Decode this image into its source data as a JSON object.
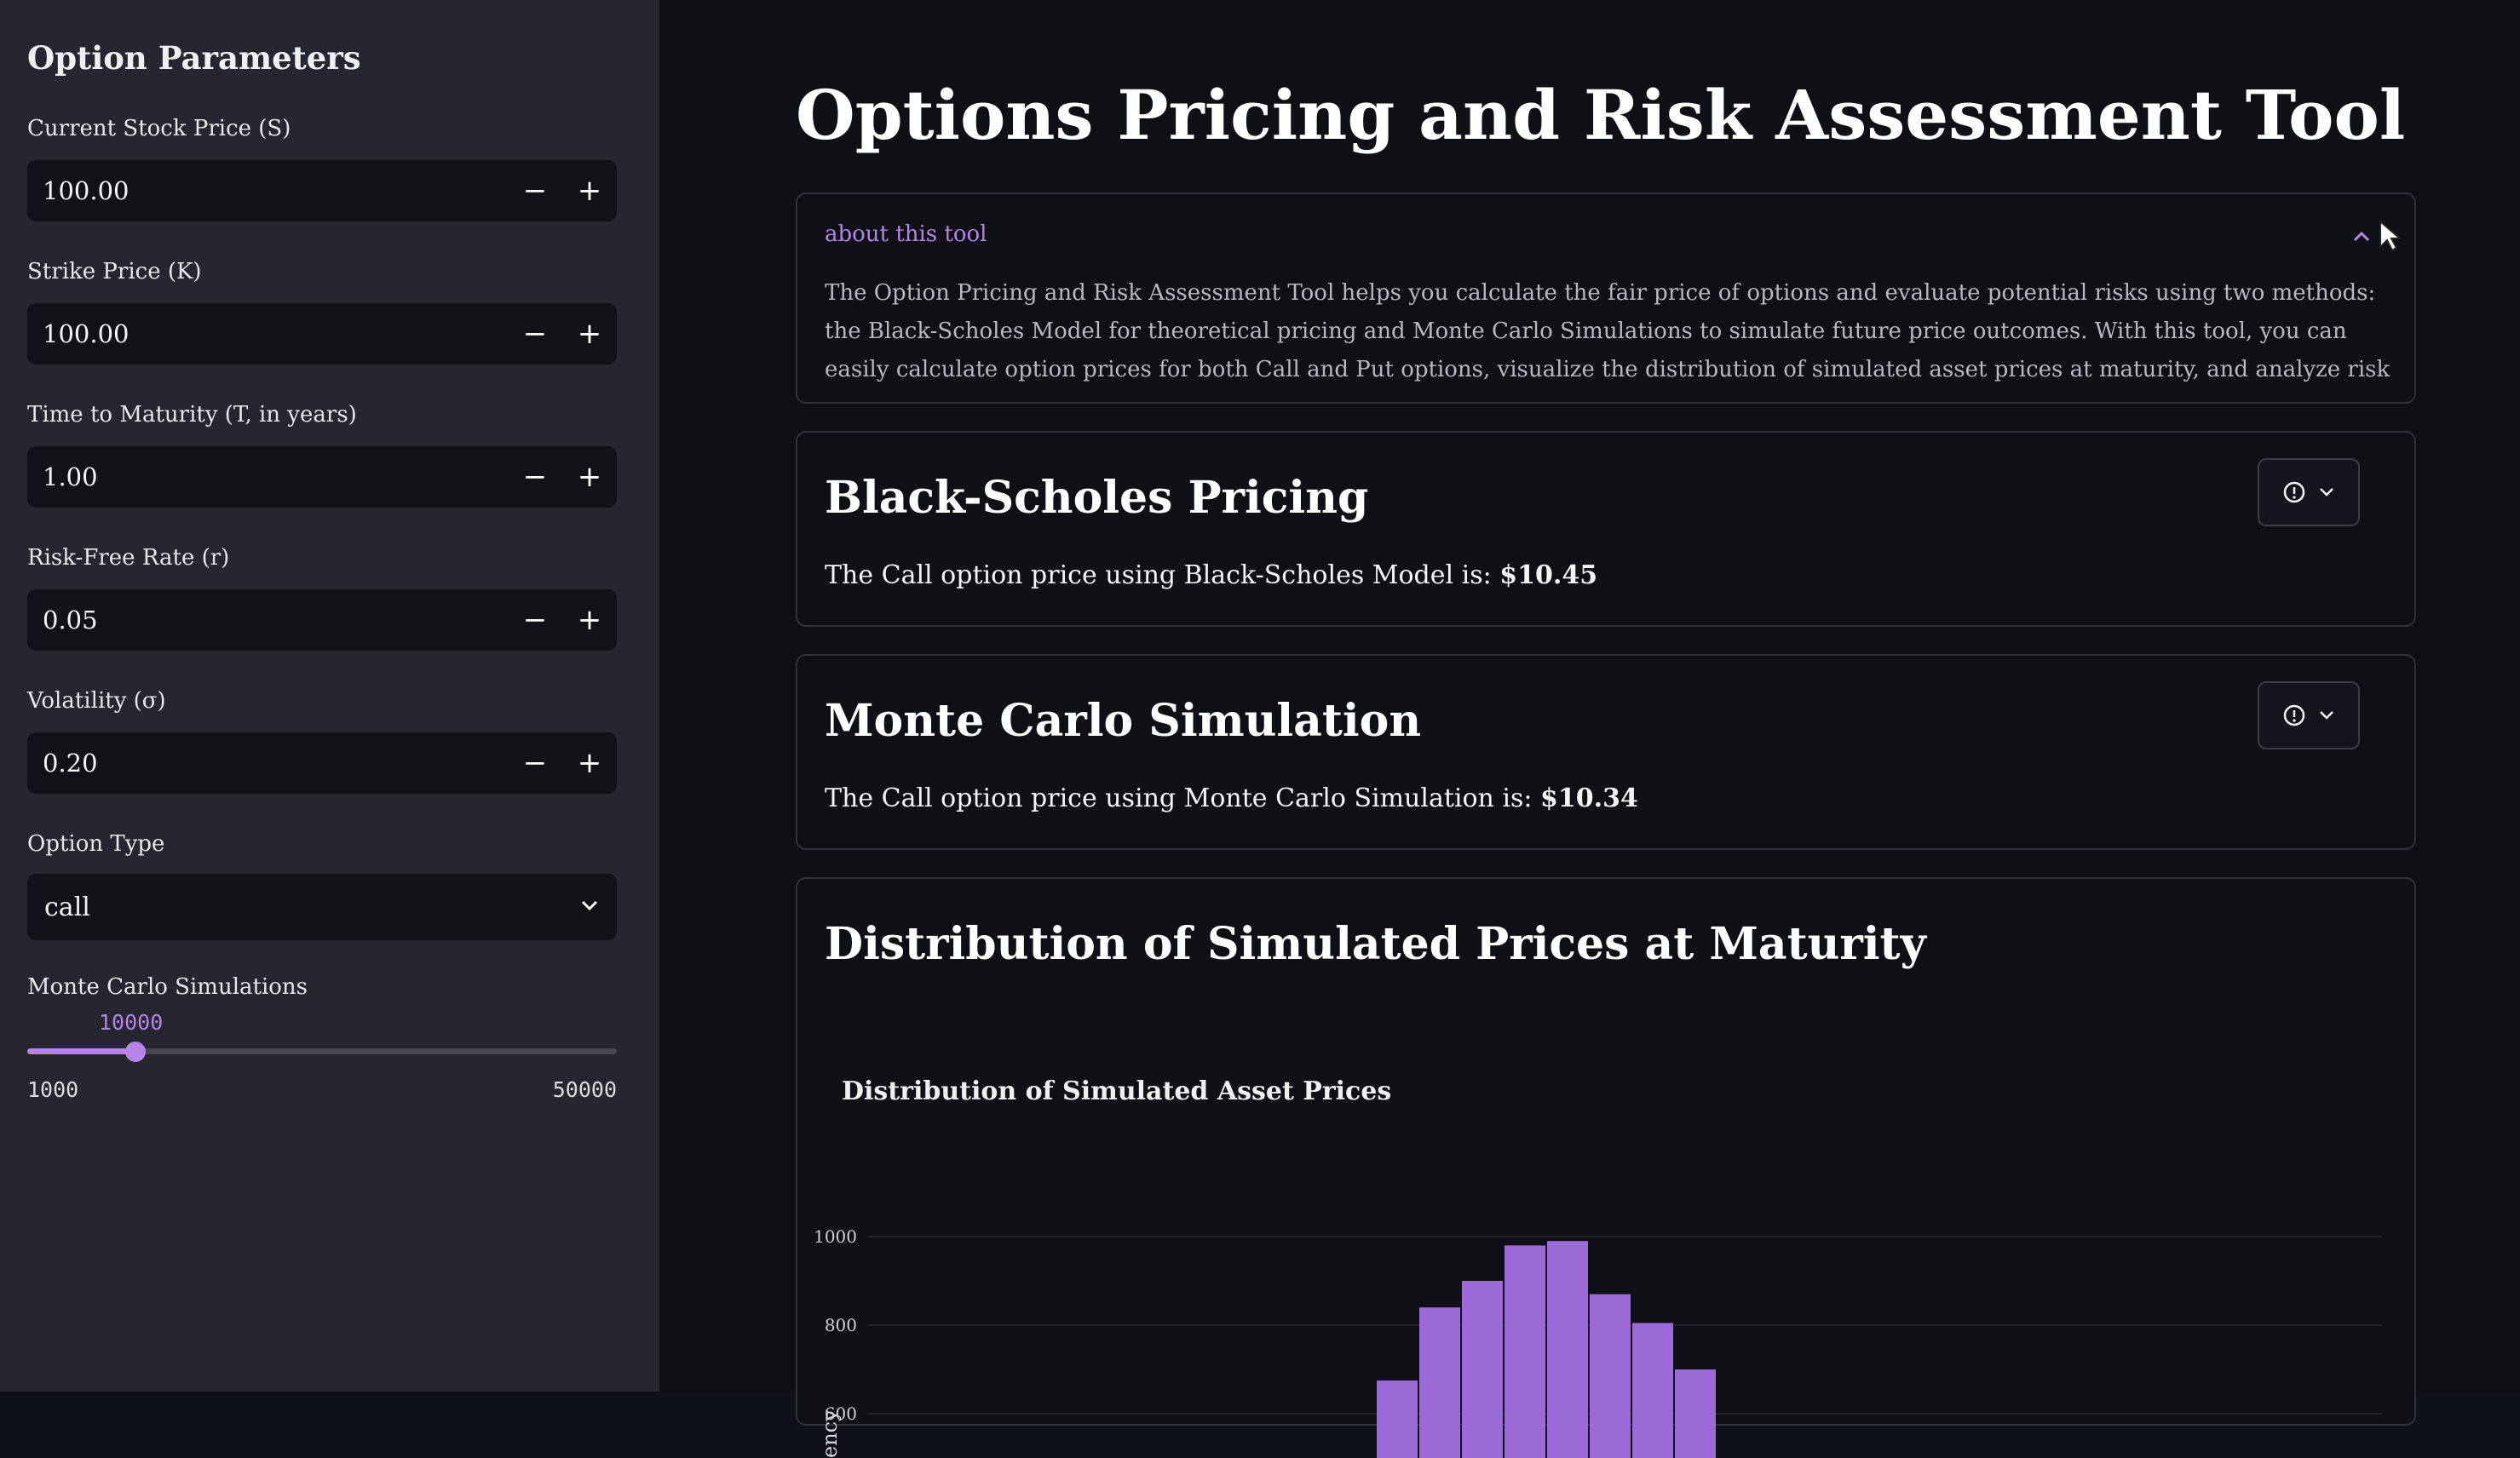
{
  "sidebar": {
    "title": "Option Parameters",
    "inputs": [
      {
        "label": "Current Stock Price (S)",
        "value": "100.00"
      },
      {
        "label": "Strike Price (K)",
        "value": "100.00"
      },
      {
        "label": "Time to Maturity (T, in years)",
        "value": "1.00"
      },
      {
        "label": "Risk-Free Rate (r)",
        "value": "0.05"
      },
      {
        "label": "Volatility (σ)",
        "value": "0.20"
      }
    ],
    "minus_glyph": "−",
    "plus_glyph": "+",
    "option_type": {
      "label": "Option Type",
      "value": "call"
    },
    "simulations": {
      "label": "Monte Carlo Simulations",
      "value": "10000",
      "min": "1000",
      "max": "50000",
      "fraction": 0.184
    }
  },
  "main": {
    "title": "Options Pricing and Risk Assessment Tool",
    "about": {
      "label": "about this tool",
      "text": "The Option Pricing and Risk Assessment Tool helps you calculate the fair price of options and evaluate potential risks using two methods: the Black-Scholes Model for theoretical pricing and Monte Carlo Simulations to simulate future price outcomes. With this tool, you can easily calculate option prices for both Call and Put options, visualize the distribution of simulated asset prices at maturity, and analyze risk metrics like Value at"
    },
    "black_scholes": {
      "title": "Black-Scholes Pricing",
      "text": "The Call option price using Black-Scholes Model is: ",
      "price": "$10.45"
    },
    "monte_carlo": {
      "title": "Monte Carlo Simulation",
      "text": "The Call option price using Monte Carlo Simulation is: ",
      "price": "$10.34"
    },
    "distribution": {
      "title": "Distribution of Simulated Prices at Maturity",
      "chart_title": "Distribution of Simulated Asset Prices"
    }
  },
  "colors": {
    "accent": "#b584e6",
    "bar": "#9b6ad6",
    "background": "#0e1117",
    "sidebar": "#252630"
  },
  "chart_data": {
    "type": "bar",
    "title": "Distribution of Simulated Asset Prices",
    "ylabel": "ency",
    "yticks": [
      600,
      800,
      1000
    ],
    "values": [
      675,
      840,
      900,
      980,
      990,
      870,
      805,
      700
    ]
  }
}
